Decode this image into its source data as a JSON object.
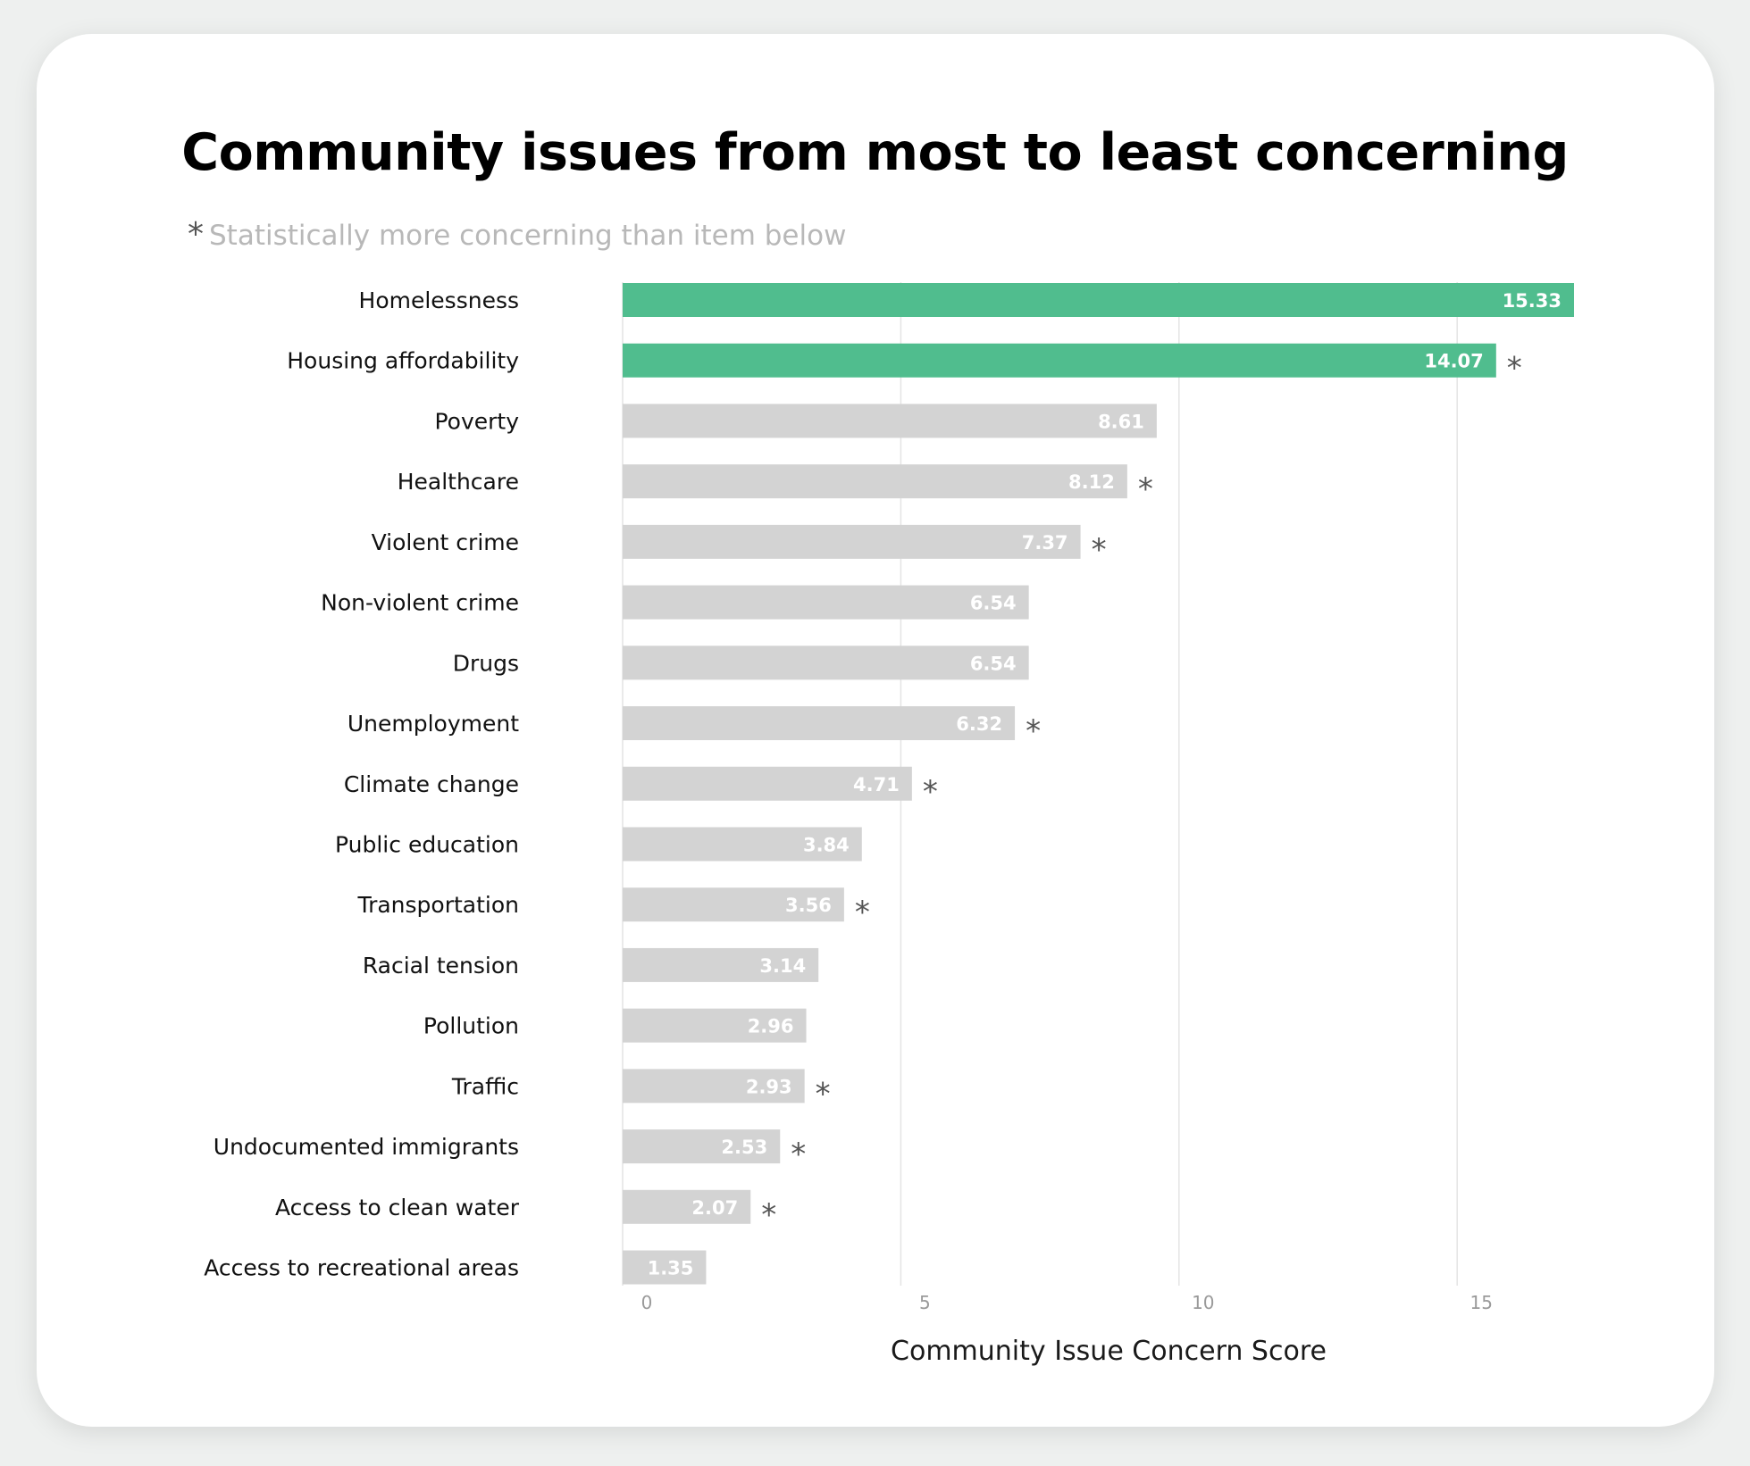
{
  "chart_data": {
    "type": "bar",
    "orientation": "horizontal",
    "title": "Community issues from most to least concerning",
    "note_symbol": "*",
    "note_text": "Statistically more concerning than item below",
    "xlabel": "Community Issue Concern Score",
    "ylabel": "",
    "xlim": [
      0,
      17.1
    ],
    "xticks": [
      0,
      5,
      10,
      15
    ],
    "grid": "vertical",
    "colors": {
      "highlight": "#50bd8e",
      "default": "#d3d3d3",
      "star": "#555555",
      "grid": "#e4e4e4"
    },
    "categories": [
      "Homelessness",
      "Housing affordability",
      "Poverty",
      "Healthcare",
      "Violent crime",
      "Non-violent crime",
      "Drugs",
      "Unemployment",
      "Climate change",
      "Public education",
      "Transportation",
      "Racial tension",
      "Pollution",
      "Traffic",
      "Undocumented immigrants",
      "Access to clean water",
      "Access to recreational areas"
    ],
    "values": [
      15.33,
      14.07,
      8.61,
      8.12,
      7.37,
      6.54,
      6.54,
      6.32,
      4.71,
      3.84,
      3.56,
      3.14,
      2.96,
      2.93,
      2.53,
      2.07,
      1.35
    ],
    "bar_lengths": [
      17.1,
      15.7,
      9.6,
      9.07,
      8.23,
      7.3,
      7.3,
      7.05,
      5.2,
      4.3,
      3.98,
      3.52,
      3.3,
      3.27,
      2.83,
      2.3,
      1.5
    ],
    "significant": [
      false,
      true,
      false,
      true,
      true,
      false,
      false,
      true,
      true,
      false,
      true,
      false,
      false,
      true,
      true,
      true,
      false
    ],
    "highlighted": [
      true,
      true,
      false,
      false,
      false,
      false,
      false,
      false,
      false,
      false,
      false,
      false,
      false,
      false,
      false,
      false,
      false
    ]
  }
}
